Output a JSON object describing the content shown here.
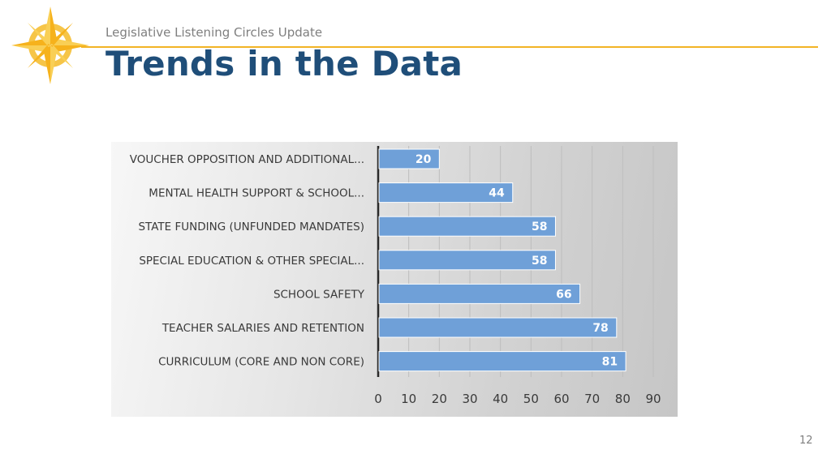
{
  "slide": {
    "subtitle": "Legislative Listening Circles Update",
    "title": "Trends in the Data",
    "page_number": "12",
    "accent_color": "#f2b425",
    "title_color": "#1f4e79",
    "logo_icon": "compass-star-icon"
  },
  "chart_data": {
    "type": "bar",
    "orientation": "horizontal",
    "categories": [
      "VOUCHER OPPOSITION AND ADDITIONAL...",
      "MENTAL HEALTH SUPPORT & SCHOOL...",
      "STATE FUNDING (UNFUNDED MANDATES)",
      "SPECIAL EDUCATION & OTHER SPECIAL...",
      "SCHOOL SAFETY",
      "TEACHER SALARIES AND RETENTION",
      "CURRICULUM (CORE AND NON CORE)"
    ],
    "values": [
      20,
      44,
      58,
      58,
      66,
      78,
      81
    ],
    "xlim": [
      0,
      90
    ],
    "ticks": [
      0,
      10,
      20,
      30,
      40,
      50,
      60,
      70,
      80,
      90
    ],
    "bar_color": "#6fa0d8",
    "grid": true,
    "data_labels": true,
    "legend": "none"
  }
}
